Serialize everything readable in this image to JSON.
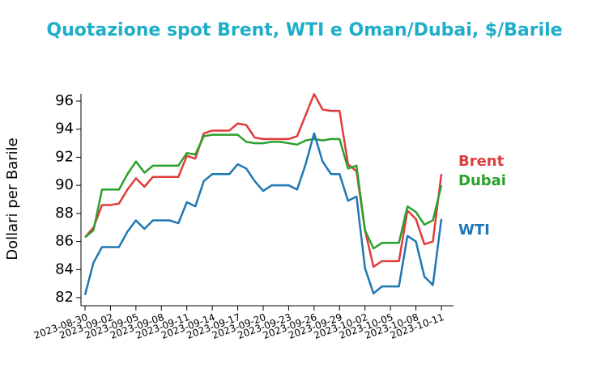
{
  "chart_data": {
    "type": "line",
    "title": "Quotazione spot Brent, WTI e Oman/Dubai, $/Barile",
    "y_label": "Dollari per Barile",
    "x": [
      "2023-08-30",
      "2023-08-31",
      "2023-09-01",
      "2023-09-02",
      "2023-09-03",
      "2023-09-04",
      "2023-09-05",
      "2023-09-06",
      "2023-09-07",
      "2023-09-08",
      "2023-09-09",
      "2023-09-10",
      "2023-09-11",
      "2023-09-12",
      "2023-09-13",
      "2023-09-14",
      "2023-09-15",
      "2023-09-16",
      "2023-09-17",
      "2023-09-18",
      "2023-09-19",
      "2023-09-20",
      "2023-09-21",
      "2023-09-22",
      "2023-09-23",
      "2023-09-24",
      "2023-09-25",
      "2023-09-26",
      "2023-09-27",
      "2023-09-28",
      "2023-09-29",
      "2023-09-30",
      "2023-10-01",
      "2023-10-02",
      "2023-10-03",
      "2023-10-04",
      "2023-10-05",
      "2023-10-06",
      "2023-10-07",
      "2023-10-08",
      "2023-10-09",
      "2023-10-10",
      "2023-10-11"
    ],
    "series": [
      {
        "name": "Brent",
        "color": "#e03c3c",
        "values": [
          86.3,
          87.0,
          88.6,
          88.6,
          88.7,
          89.7,
          90.5,
          89.9,
          90.6,
          90.6,
          90.6,
          90.6,
          92.1,
          91.9,
          93.7,
          93.9,
          93.9,
          93.9,
          94.4,
          94.3,
          93.4,
          93.3,
          93.3,
          93.3,
          93.3,
          93.5,
          95.0,
          96.5,
          95.4,
          95.3,
          95.3,
          91.5,
          91.0,
          86.8,
          84.2,
          84.6,
          84.6,
          84.6,
          88.2,
          87.6,
          85.8,
          86.0,
          90.8
        ]
      },
      {
        "name": "Dubai",
        "color": "#2ca02c",
        "values": [
          86.3,
          86.8,
          89.7,
          89.7,
          89.7,
          90.8,
          91.7,
          90.9,
          91.4,
          91.4,
          91.4,
          91.4,
          92.3,
          92.2,
          93.5,
          93.6,
          93.6,
          93.6,
          93.6,
          93.1,
          93.0,
          93.0,
          93.1,
          93.1,
          93.0,
          92.9,
          93.2,
          93.3,
          93.2,
          93.3,
          93.3,
          91.2,
          91.4,
          86.8,
          85.5,
          85.9,
          85.9,
          85.9,
          88.5,
          88.1,
          87.2,
          87.5,
          90.0
        ]
      },
      {
        "name": "WTI",
        "color": "#1f77b4",
        "values": [
          82.2,
          84.5,
          85.6,
          85.6,
          85.6,
          86.7,
          87.5,
          86.9,
          87.5,
          87.5,
          87.5,
          87.3,
          88.8,
          88.5,
          90.3,
          90.8,
          90.8,
          90.8,
          91.5,
          91.2,
          90.3,
          89.6,
          90.0,
          90.0,
          90.0,
          89.7,
          91.5,
          93.7,
          91.7,
          90.8,
          90.8,
          88.9,
          89.2,
          84.1,
          82.3,
          82.8,
          82.8,
          82.8,
          86.4,
          86.0,
          83.5,
          82.9,
          87.6
        ]
      }
    ],
    "xlim": [
      "2023-08-30",
      "2023-10-11"
    ],
    "xticks": [
      "2023-08-30",
      "2023-09-02",
      "2023-09-05",
      "2023-09-08",
      "2023-09-11",
      "2023-09-14",
      "2023-09-17",
      "2023-09-20",
      "2023-09-23",
      "2023-09-26",
      "2023-09-29",
      "2023-10-02",
      "2023-10-05",
      "2023-10-08",
      "2023-10-11"
    ],
    "ylim": [
      81.4,
      96.5
    ],
    "yticks": [
      82,
      84,
      86,
      88,
      90,
      92,
      94,
      96
    ],
    "grid": false
  }
}
